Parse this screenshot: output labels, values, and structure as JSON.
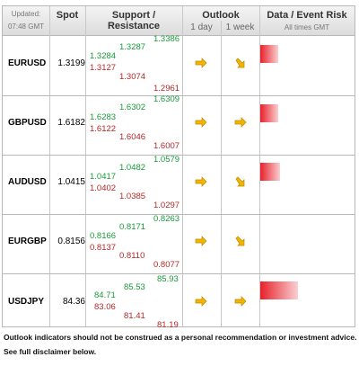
{
  "header": {
    "updated_label": "Updated:",
    "updated_time": "07:48 GMT",
    "spot": "Spot",
    "support_resistance": "Support / Resistance",
    "outlook": "Outlook",
    "day": "1 day",
    "week": "1 week",
    "risk": "Data / Event Risk",
    "risk_sub": "All times GMT"
  },
  "rows": [
    {
      "pair": "EURUSD",
      "spot": "1.3199",
      "s1": "1.3284",
      "s2": "1.3127",
      "r1": "1.3287",
      "r2": "1.3074",
      "r3": "1.3386",
      "r4": "1.2961",
      "day": "arrow-right",
      "week": "arrow-down-right",
      "risk_level": 0.5
    },
    {
      "pair": "GBPUSD",
      "spot": "1.6182",
      "s1": "1.6283",
      "s2": "1.6122",
      "r1": "1.6302",
      "r2": "1.6046",
      "r3": "1.6309",
      "r4": "1.6007",
      "day": "arrow-right",
      "week": "arrow-right",
      "risk_level": 0.5
    },
    {
      "pair": "AUDUSD",
      "spot": "1.0415",
      "s1": "1.0417",
      "s2": "1.0402",
      "r1": "1.0482",
      "r2": "1.0385",
      "r3": "1.0579",
      "r4": "1.0297",
      "day": "arrow-right",
      "week": "arrow-down-right",
      "risk_level": 0.5
    },
    {
      "pair": "EURGBP",
      "spot": "0.8156",
      "s1": "0.8166",
      "s2": "0.8137",
      "r1": "0.8171",
      "r2": "0.8110",
      "r3": "0.8263",
      "r4": "0.8077",
      "day": "arrow-right",
      "week": "arrow-down-right",
      "risk_level": 0
    },
    {
      "pair": "USDJPY",
      "spot": "84.36",
      "s1": "84.71",
      "s2": "83.06",
      "r1": "85.53",
      "r2": "81.41",
      "r3": "85.93",
      "r4": "81.19",
      "day": "arrow-right",
      "week": "arrow-right",
      "risk_level": 1.0
    }
  ],
  "footer": {
    "line1": "Outlook indicators should not be construed as a personal recommendation or investment advice.",
    "line2": "See full disclaimer below."
  },
  "colors": {
    "support": "#1a9a3a",
    "resistance": "#b42828",
    "arrow": "#f4b400",
    "risk": "#e8202a"
  }
}
